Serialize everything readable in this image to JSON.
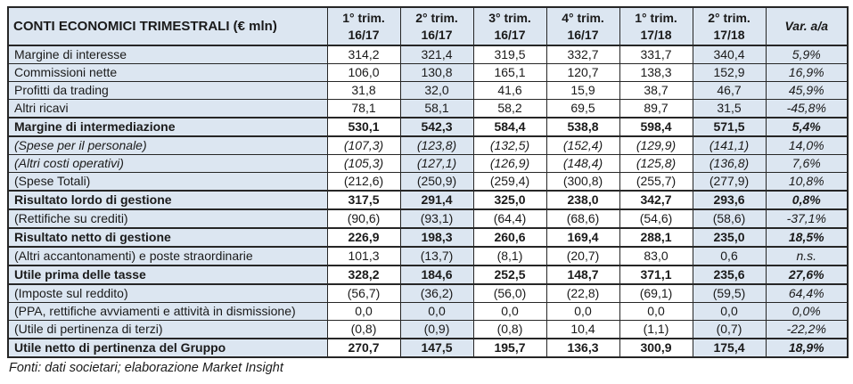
{
  "colors": {
    "accent_fill": "#dce6f1",
    "border": "#262626",
    "text": "#1a1a1a",
    "cell_white": "#ffffff"
  },
  "table": {
    "title": "CONTI ECONOMICI TRIMESTRALI (€ mln)",
    "columns": [
      {
        "line1": "1° trim.",
        "line2": "16/17"
      },
      {
        "line1": "2° trim.",
        "line2": "16/17"
      },
      {
        "line1": "3° trim.",
        "line2": "16/17"
      },
      {
        "line1": "4° trim.",
        "line2": "16/17"
      },
      {
        "line1": "1° trim.",
        "line2": "17/18"
      },
      {
        "line1": "2° trim.",
        "line2": "17/18"
      },
      {
        "label": "Var. a/a"
      }
    ],
    "highlight_value_cols": [
      1,
      5
    ],
    "rows": [
      {
        "label": "Margine di interesse",
        "style": "normal",
        "values": [
          "314,2",
          "321,4",
          "319,5",
          "332,7",
          "331,7",
          "340,4"
        ],
        "var": "5,9%"
      },
      {
        "label": "Commissioni nette",
        "style": "normal",
        "values": [
          "106,0",
          "130,8",
          "165,1",
          "120,7",
          "138,3",
          "152,9"
        ],
        "var": "16,9%"
      },
      {
        "label": "Profitti da trading",
        "style": "normal",
        "values": [
          "31,8",
          "32,0",
          "41,6",
          "15,9",
          "38,7",
          "46,7"
        ],
        "var": "45,9%"
      },
      {
        "label": "Altri ricavi",
        "style": "normal",
        "values": [
          "78,1",
          "58,1",
          "58,2",
          "69,5",
          "89,7",
          "31,5"
        ],
        "var": "-45,8%"
      },
      {
        "label": "Margine di intermediazione",
        "style": "bold",
        "values": [
          "530,1",
          "542,3",
          "584,4",
          "538,8",
          "598,4",
          "571,5"
        ],
        "var": "5,4%"
      },
      {
        "label": "(Spese per il personale)",
        "style": "italic",
        "values": [
          "(107,3)",
          "(123,8)",
          "(132,5)",
          "(152,4)",
          "(129,9)",
          "(141,1)"
        ],
        "var": "14,0%"
      },
      {
        "label": "(Altri costi operativi)",
        "style": "italic",
        "values": [
          "(105,3)",
          "(127,1)",
          "(126,9)",
          "(148,4)",
          "(125,8)",
          "(136,8)"
        ],
        "var": "7,6%"
      },
      {
        "label": "(Spese Totali)",
        "style": "normal",
        "values": [
          "(212,6)",
          "(250,9)",
          "(259,4)",
          "(300,8)",
          "(255,7)",
          "(277,9)"
        ],
        "var": "10,8%"
      },
      {
        "label": "Risultato lordo di gestione",
        "style": "bold",
        "values": [
          "317,5",
          "291,4",
          "325,0",
          "238,0",
          "342,7",
          "293,6"
        ],
        "var": "0,8%"
      },
      {
        "label": "(Rettifiche su crediti)",
        "style": "normal",
        "values": [
          "(90,6)",
          "(93,1)",
          "(64,4)",
          "(68,6)",
          "(54,6)",
          "(58,6)"
        ],
        "var": "-37,1%"
      },
      {
        "label": "Risultato netto di gestione",
        "style": "bold",
        "values": [
          "226,9",
          "198,3",
          "260,6",
          "169,4",
          "288,1",
          "235,0"
        ],
        "var": "18,5%"
      },
      {
        "label": "(Altri accantonamenti) e poste straordinarie",
        "style": "normal",
        "values": [
          "101,3",
          "(13,7)",
          "(8,1)",
          "(20,7)",
          "83,0",
          "0,6"
        ],
        "var": "n.s."
      },
      {
        "label": "Utile prima delle tasse",
        "style": "bold",
        "values": [
          "328,2",
          "184,6",
          "252,5",
          "148,7",
          "371,1",
          "235,6"
        ],
        "var": "27,6%"
      },
      {
        "label": "(Imposte sul reddito)",
        "style": "normal",
        "values": [
          "(56,7)",
          "(36,2)",
          "(56,0)",
          "(22,8)",
          "(69,1)",
          "(59,5)"
        ],
        "var": "64,4%"
      },
      {
        "label": "(PPA, rettifiche avviamenti e attività in dismissione)",
        "style": "normal",
        "values": [
          "0,0",
          "0,0",
          "0,0",
          "0,0",
          "0,0",
          "0,0"
        ],
        "var": "0,0%"
      },
      {
        "label": "(Utile di pertinenza di terzi)",
        "style": "normal",
        "values": [
          "(0,8)",
          "(0,9)",
          "(0,8)",
          "10,4",
          "(1,1)",
          "(0,7)"
        ],
        "var": "-22,2%"
      },
      {
        "label": "Utile netto di pertinenza del Gruppo",
        "style": "bold",
        "values": [
          "270,7",
          "147,5",
          "195,7",
          "136,3",
          "300,9",
          "175,4"
        ],
        "var": "18,9%"
      }
    ]
  },
  "footer": {
    "text": "Fonti: dati societari; elaborazione Market Insight"
  }
}
